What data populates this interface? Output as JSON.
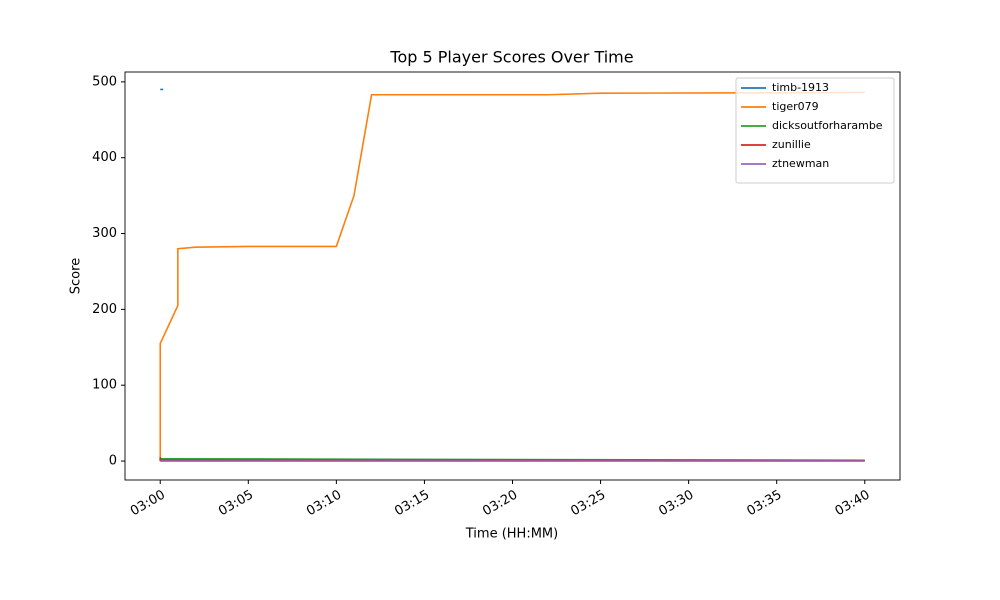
{
  "chart_data": {
    "type": "line",
    "title": "Top 5 Player Scores Over Time",
    "x_label": "Time (HH:MM)",
    "y_label": "Score",
    "xlim": [
      "02:58",
      "03:42"
    ],
    "xticks": [
      "03:00",
      "03:05",
      "03:10",
      "03:15",
      "03:20",
      "03:25",
      "03:30",
      "03:35",
      "03:40"
    ],
    "ylim": [
      -25,
      513
    ],
    "yticks": [
      0,
      100,
      200,
      300,
      400,
      500
    ],
    "legend": "upper right",
    "grid": false,
    "series": [
      {
        "name": "timb-1913",
        "color": "#1f77b4",
        "x": [
          "03:00"
        ],
        "values": [
          490
        ]
      },
      {
        "name": "tiger079",
        "color": "#ff7f0e",
        "x": [
          "03:00",
          "03:00",
          "03:00",
          "03:01",
          "03:01",
          "03:02",
          "03:05",
          "03:10",
          "03:11",
          "03:12",
          "03:22",
          "03:25",
          "03:40"
        ],
        "values": [
          0,
          155,
          155,
          205,
          280,
          282,
          283,
          283,
          350,
          483,
          483,
          485,
          486
        ]
      },
      {
        "name": "dicksoutforharambe",
        "color": "#2ca02c",
        "x": [
          "03:00",
          "03:40"
        ],
        "values": [
          3,
          1
        ]
      },
      {
        "name": "zunillie",
        "color": "#d62728",
        "x": [
          "03:00",
          "03:00",
          "03:40"
        ],
        "values": [
          5,
          1,
          1
        ]
      },
      {
        "name": "ztnewman",
        "color": "#9467bd",
        "x": [
          "03:00",
          "03:40"
        ],
        "values": [
          0,
          0
        ]
      }
    ]
  }
}
